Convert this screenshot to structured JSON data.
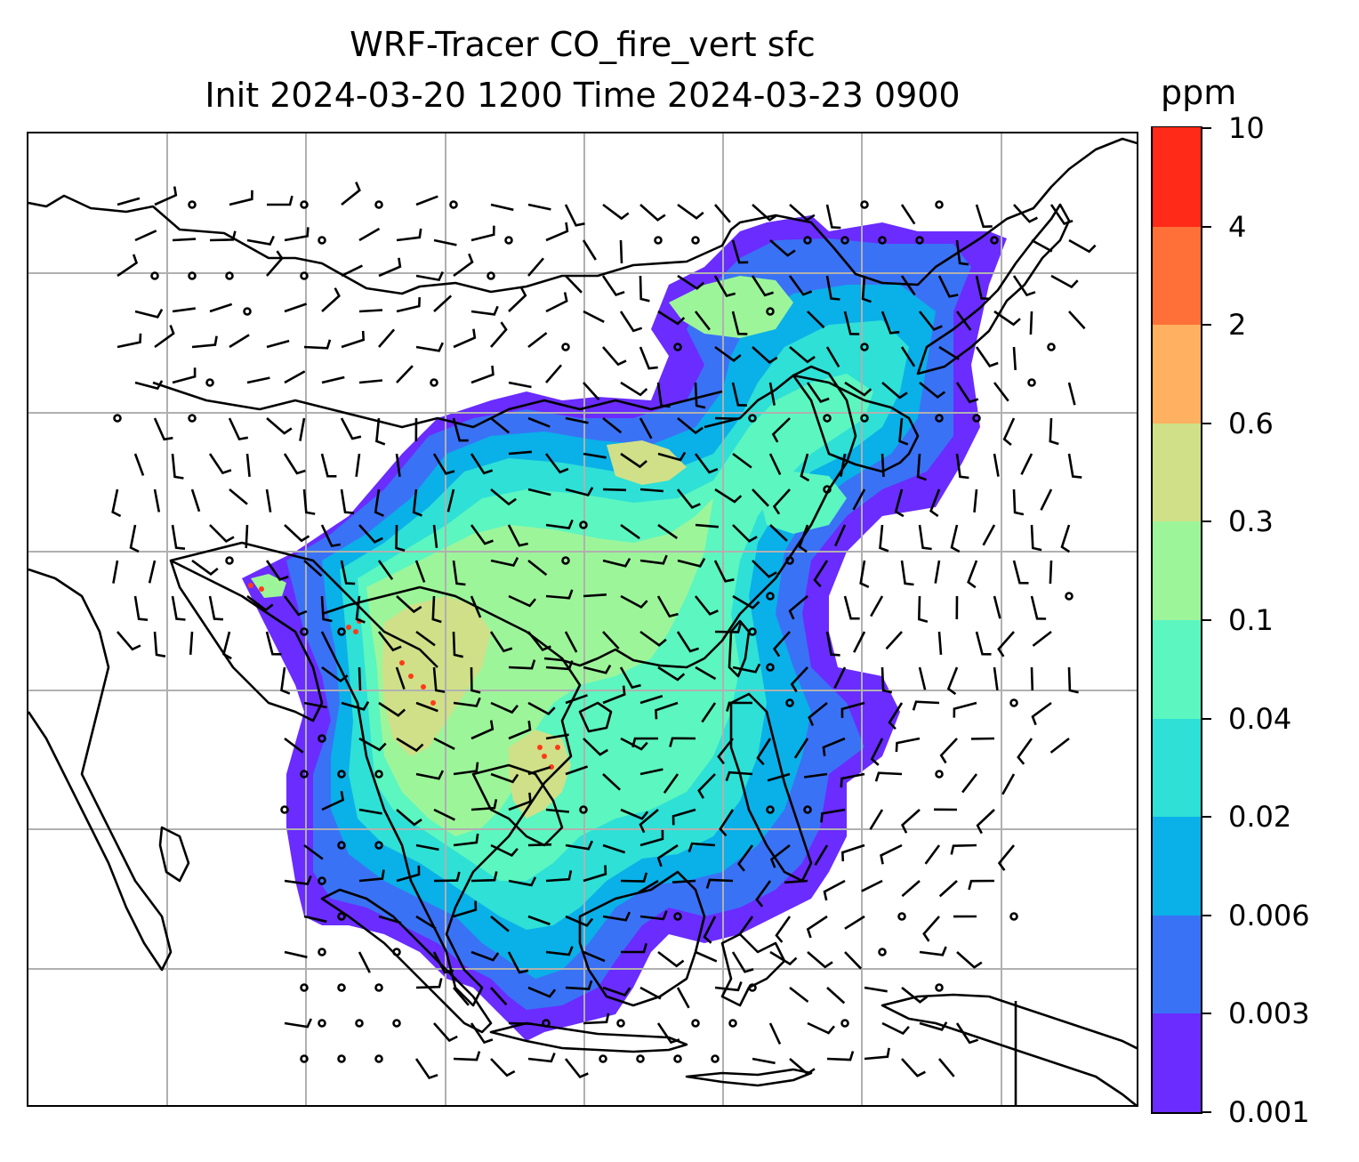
{
  "title": {
    "line1": "WRF-Tracer CO_fire_vert sfc",
    "line2": "Init 2024-03-20 1200 Time 2024-03-23 0900"
  },
  "colorbar": {
    "units": "ppm",
    "ticks": [
      "0.001",
      "0.003",
      "0.006",
      "0.02",
      "0.04",
      "0.1",
      "0.3",
      "0.6",
      "2",
      "4",
      "10"
    ],
    "colors": [
      "#6a2cff",
      "#3a72f5",
      "#0ab0e8",
      "#2ee0d6",
      "#5cf6c0",
      "#9df59a",
      "#d0e088",
      "#ffb060",
      "#ff7038",
      "#ff2a18"
    ]
  },
  "map": {
    "field": "CO_fire_vert sfc",
    "plume_levels": [
      "0.001",
      "0.003",
      "0.006",
      "0.02",
      "0.04",
      "0.1",
      "0.3"
    ],
    "hotspot_color": "#ff3a18",
    "gridline_color": "#b0b0b0",
    "coastline_color": "#000000",
    "wind_symbols": [
      "wind-barb",
      "calm-circle"
    ]
  }
}
